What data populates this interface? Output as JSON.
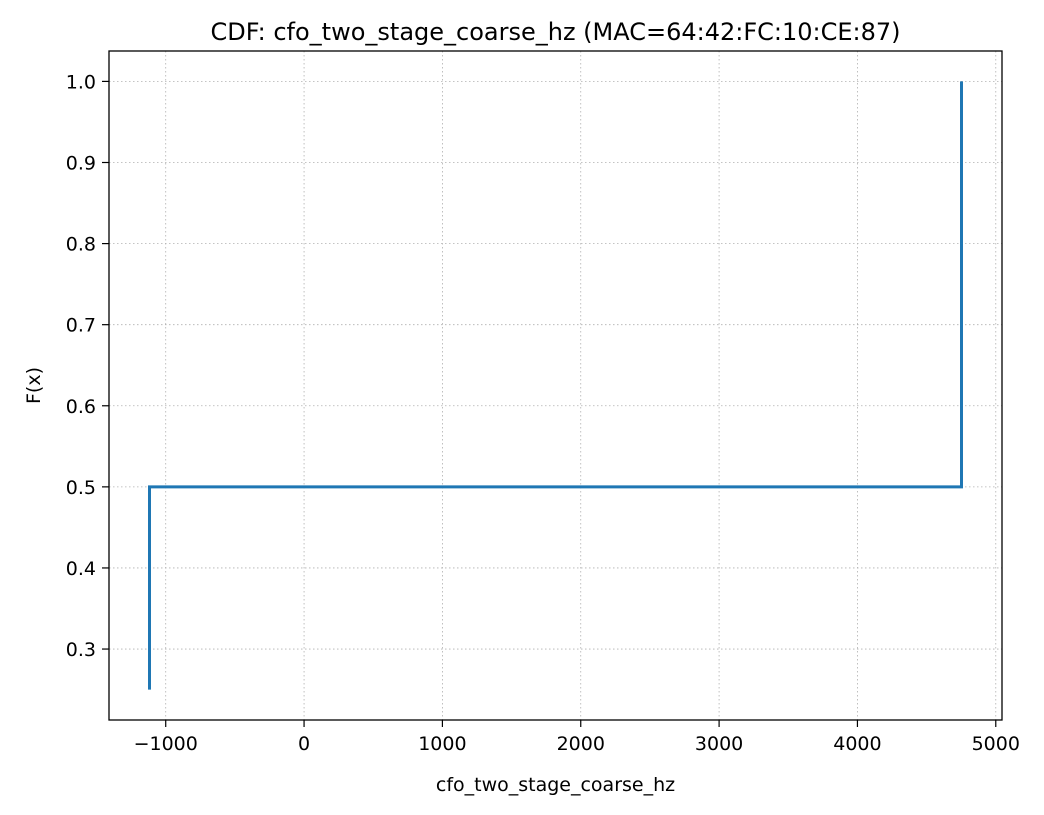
{
  "chart_data": {
    "type": "line",
    "drawstyle": "steps-post",
    "title": "CDF: cfo_two_stage_coarse_hz (MAC=64:42:FC:10:CE:87)",
    "xlabel": "cfo_two_stage_coarse_hz",
    "ylabel": "F(x)",
    "xlim": [
      -1410,
      5045
    ],
    "ylim": [
      0.2125,
      1.0375
    ],
    "xticks": [
      -1000,
      0,
      1000,
      2000,
      3000,
      4000,
      5000
    ],
    "xtick_labels": [
      "−1000",
      "0",
      "1000",
      "2000",
      "3000",
      "4000",
      "5000"
    ],
    "yticks": [
      0.3,
      0.4,
      0.5,
      0.6,
      0.7,
      0.8,
      0.9,
      1.0
    ],
    "ytick_labels": [
      "0.3",
      "0.4",
      "0.5",
      "0.6",
      "0.7",
      "0.8",
      "0.9",
      "1.0"
    ],
    "grid": true,
    "series": [
      {
        "color": "#1f77b4",
        "points": [
          {
            "x": -1117,
            "y": 0.25
          },
          {
            "x": -1117,
            "y": 0.5
          },
          {
            "x": 4752,
            "y": 0.5
          },
          {
            "x": 4752,
            "y": 1.0
          }
        ]
      }
    ]
  }
}
